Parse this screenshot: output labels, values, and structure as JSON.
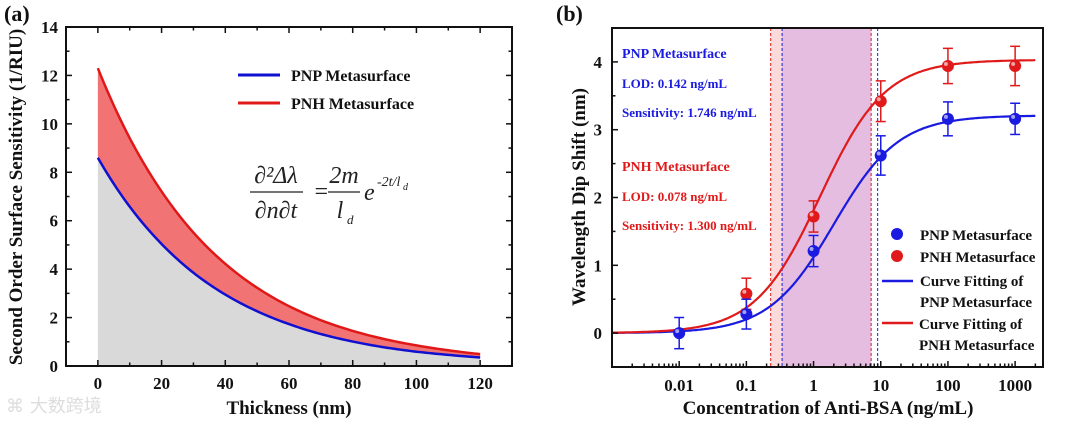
{
  "watermark": "大数跨境",
  "chart_data": [
    {
      "type": "area",
      "panel_label": "(a)",
      "xlabel": "Thickness (nm)",
      "ylabel": "Second Order Surface Sensitivity (1/RIU)",
      "xlim": [
        -10,
        130
      ],
      "ylim": [
        0,
        14
      ],
      "xticks": [
        "0",
        "20",
        "40",
        "60",
        "80",
        "100",
        "120"
      ],
      "yticks": [
        "0",
        "2",
        "4",
        "6",
        "8",
        "10",
        "12",
        "14"
      ],
      "x": [
        0,
        10,
        20,
        30,
        40,
        50,
        60,
        70,
        80,
        90,
        100,
        110,
        120
      ],
      "series": [
        {
          "name": "PNP Metasurface",
          "color": "#1010d0",
          "fill": "#d9d9d9",
          "values": [
            8.6,
            6.58,
            5.04,
            3.85,
            2.95,
            2.26,
            1.73,
            1.32,
            1.01,
            0.77,
            0.59,
            0.46,
            0.35
          ]
        },
        {
          "name": "PNH Metasurface",
          "color": "#e01818",
          "fill": "#f27373",
          "values": [
            12.3,
            9.41,
            7.21,
            5.51,
            4.22,
            3.23,
            2.47,
            1.89,
            1.45,
            1.11,
            0.85,
            0.65,
            0.49
          ]
        }
      ],
      "legend_position": "top-right",
      "equation": {
        "lhs_num": "∂²Δλ",
        "lhs_den": "∂n∂t",
        "equals": "=",
        "rhs_num": "2m",
        "rhs_den": "l",
        "rhs_den_sub": "d",
        "exp_base": "e",
        "exponent": "-2t/l",
        "exponent_sub": "d"
      }
    },
    {
      "type": "scatter",
      "panel_label": "(b)",
      "xlabel": "Concentration of Anti-BSA (ng/mL)",
      "ylabel": "Wavelength Dip Shift (nm)",
      "xscale": "log",
      "xlim": [
        0.001,
        2600
      ],
      "ylim": [
        -0.5,
        4.5
      ],
      "xticks": [
        "0.01",
        "0.1",
        "1",
        "10",
        "100",
        "1000"
      ],
      "yticks": [
        "0",
        "1",
        "2",
        "3",
        "4"
      ],
      "series": [
        {
          "name": "PNP  Metasurface",
          "color": "#1a1ae0",
          "x": [
            0.01,
            0.1,
            1,
            10,
            100,
            1000
          ],
          "y": [
            0.0,
            0.28,
            1.21,
            2.62,
            3.16,
            3.16
          ],
          "err": [
            0.23,
            0.22,
            0.23,
            0.29,
            0.25,
            0.23
          ],
          "fit": {
            "name_line1": "Curve Fitting of",
            "name_line2": "PNP  Metasurface",
            "top": 3.21,
            "x0": 2.0,
            "p": 0.9
          }
        },
        {
          "name": "PNH Metasurface",
          "color": "#e01a1a",
          "x": [
            0.1,
            1,
            10,
            100,
            1000
          ],
          "y": [
            0.58,
            1.72,
            3.42,
            3.94,
            3.94
          ],
          "err": [
            0.23,
            0.23,
            0.3,
            0.26,
            0.29
          ],
          "fit": {
            "name_line1": "Curve Fitting of",
            "name_line2": "PNH  Metasurface",
            "top": 4.03,
            "x0": 1.25,
            "p": 0.9
          }
        }
      ],
      "dashed_lines": {
        "PNP": [
          0.34,
          9.0
        ],
        "PNH": [
          0.23,
          7.2
        ]
      },
      "annotations": {
        "pnp": {
          "title": "PNP Metasurface",
          "lod": "LOD: 0.142 ng/mL",
          "sens": "Sensitivity: 1.746 ng/mL"
        },
        "pnh": {
          "title": "PNH Metasurface",
          "lod": "LOD: 0.078 ng/mL",
          "sens": "Sensitivity: 1.300 ng/mL"
        }
      },
      "legend_position": "bottom-right"
    }
  ]
}
